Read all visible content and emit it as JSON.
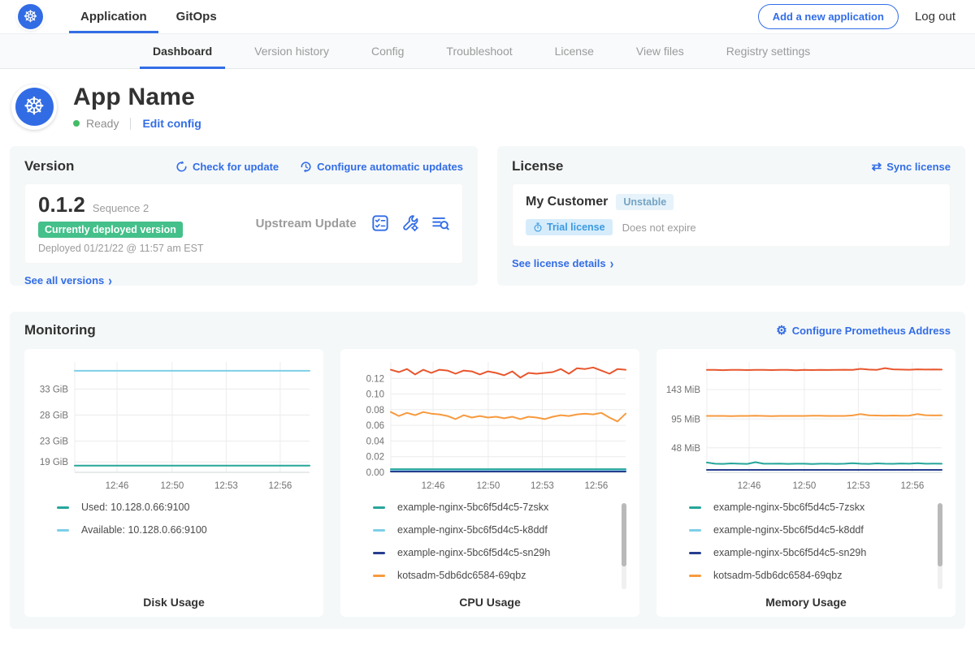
{
  "colors": {
    "accent_blue": "#326de6",
    "k8s_blue": "#326ce5",
    "green_badge": "#44c08a",
    "ready_green": "#44bb66",
    "panel_bg": "#f5f8f9",
    "teal": "#26a69a",
    "light_blue": "#7ecfe8",
    "navy": "#253e8f",
    "orange": "#f79a3e",
    "red_orange": "#e8562d"
  },
  "icons": {
    "logo_glyph": "☸",
    "chevron": "›",
    "gear": "⚙",
    "sync": "⇄"
  },
  "top_nav": {
    "tabs": [
      {
        "label": "Application"
      },
      {
        "label": "GitOps"
      }
    ],
    "active": "Application",
    "add_button": "Add a new application",
    "logout": "Log out"
  },
  "sub_nav": {
    "tabs": [
      "Dashboard",
      "Version history",
      "Config",
      "Troubleshoot",
      "License",
      "View files",
      "Registry settings"
    ],
    "active": "Dashboard"
  },
  "app_header": {
    "name": "App Name",
    "status": "Ready",
    "edit_config": "Edit config"
  },
  "version_card": {
    "title": "Version",
    "check_for_update": "Check for update",
    "configure_updates": "Configure automatic updates",
    "version": "0.1.2",
    "sequence": "Sequence 2",
    "deployed_badge": "Currently deployed version",
    "deployed_at": "Deployed 01/21/22 @ 11:57 am EST",
    "source": "Upstream Update",
    "action_icons": [
      "preflight-checks",
      "config-wrench",
      "deploy-logs"
    ],
    "see_all": "See all versions"
  },
  "license_card": {
    "title": "License",
    "sync": "Sync license",
    "customer": "My Customer",
    "channel": "Unstable",
    "trial_badge": "Trial license",
    "expiry": "Does not expire",
    "details": "See license details"
  },
  "monitoring": {
    "title": "Monitoring",
    "configure_link": "Configure Prometheus Address",
    "charts": [
      {
        "type": "line",
        "title": "Disk Usage",
        "ylim": [
          17,
          38.2
        ],
        "yticks": [
          {
            "v": 19,
            "label": "19 GiB"
          },
          {
            "v": 23,
            "label": "23 GiB"
          },
          {
            "v": 28,
            "label": "28 GiB"
          },
          {
            "v": 33,
            "label": "33 GiB"
          }
        ],
        "xticks": [
          {
            "f": 0.18,
            "label": "12:46"
          },
          {
            "f": 0.415,
            "label": "12:50"
          },
          {
            "f": 0.645,
            "label": "12:53"
          },
          {
            "f": 0.875,
            "label": "12:56"
          }
        ],
        "series": [
          {
            "name": "Used: 10.128.0.66:9100",
            "color": "#26a69a",
            "values": [
              18.3,
              18.3
            ]
          },
          {
            "name": "Available: 10.128.0.66:9100",
            "color": "#7ecfe8",
            "values": [
              36.5,
              36.5
            ]
          }
        ],
        "legend": [
          {
            "label": "Used: 10.128.0.66:9100",
            "color": "#26a69a"
          },
          {
            "label": "Available: 10.128.0.66:9100",
            "color": "#7ecfe8"
          }
        ],
        "legend_scrollbar": false
      },
      {
        "type": "line",
        "title": "CPU Usage",
        "ylim": [
          0,
          0.141
        ],
        "yticks": [
          {
            "v": 0.0,
            "label": "0.00"
          },
          {
            "v": 0.02,
            "label": "0.02"
          },
          {
            "v": 0.04,
            "label": "0.04"
          },
          {
            "v": 0.06,
            "label": "0.06"
          },
          {
            "v": 0.08,
            "label": "0.08"
          },
          {
            "v": 0.1,
            "label": "0.10"
          },
          {
            "v": 0.12,
            "label": "0.12"
          }
        ],
        "xticks": [
          {
            "f": 0.18,
            "label": "12:46"
          },
          {
            "f": 0.415,
            "label": "12:50"
          },
          {
            "f": 0.645,
            "label": "12:53"
          },
          {
            "f": 0.875,
            "label": "12:56"
          }
        ],
        "series": [
          {
            "name": "",
            "color": "#e8562d",
            "values": [
              0.131,
              0.128,
              0.132,
              0.125,
              0.131,
              0.127,
              0.131,
              0.13,
              0.126,
              0.13,
              0.129,
              0.125,
              0.129,
              0.127,
              0.124,
              0.129,
              0.121,
              0.127,
              0.126,
              0.127,
              0.128,
              0.132,
              0.126,
              0.133,
              0.132,
              0.134,
              0.13,
              0.126,
              0.132,
              0.131
            ]
          },
          {
            "name": "kotsadm-5db6dc6584-69qbz",
            "color": "#f79a3e",
            "values": [
              0.077,
              0.072,
              0.076,
              0.073,
              0.077,
              0.075,
              0.074,
              0.072,
              0.068,
              0.073,
              0.07,
              0.072,
              0.07,
              0.071,
              0.069,
              0.071,
              0.068,
              0.071,
              0.07,
              0.068,
              0.071,
              0.073,
              0.072,
              0.074,
              0.075,
              0.074,
              0.076,
              0.07,
              0.065,
              0.075
            ]
          },
          {
            "name": "example-nginx-5bc6f5d4c5-7zskx",
            "color": "#26a69a",
            "values": [
              0.004,
              0.004
            ]
          },
          {
            "name": "example-nginx-5bc6f5d4c5-k8ddf",
            "color": "#7ecfe8",
            "values": [
              0.002,
              0.002
            ]
          },
          {
            "name": "example-nginx-5bc6f5d4c5-sn29h",
            "color": "#253e8f",
            "values": [
              0.001,
              0.001
            ]
          }
        ],
        "legend": [
          {
            "label": "example-nginx-5bc6f5d4c5-7zskx",
            "color": "#26a69a"
          },
          {
            "label": "example-nginx-5bc6f5d4c5-k8ddf",
            "color": "#7ecfe8"
          },
          {
            "label": "example-nginx-5bc6f5d4c5-sn29h",
            "color": "#253e8f"
          },
          {
            "label": "kotsadm-5db6dc6584-69qbz",
            "color": "#f79a3e"
          }
        ],
        "legend_scrollbar": true
      },
      {
        "type": "line",
        "title": "Memory Usage",
        "ylim": [
          8,
          188
        ],
        "yticks": [
          {
            "v": 48,
            "label": "48 MiB"
          },
          {
            "v": 95,
            "label": "95 MiB"
          },
          {
            "v": 143,
            "label": "143 MiB"
          }
        ],
        "xticks": [
          {
            "f": 0.18,
            "label": "12:46"
          },
          {
            "f": 0.415,
            "label": "12:50"
          },
          {
            "f": 0.645,
            "label": "12:53"
          },
          {
            "f": 0.875,
            "label": "12:56"
          }
        ],
        "series": [
          {
            "name": "",
            "color": "#e8562d",
            "values": [
              175,
              175,
              174.6,
              175,
              175.2,
              174.8,
              175,
              175,
              174.7,
              175,
              175,
              174.5,
              175,
              174.8,
              175,
              174.9,
              175,
              175.3,
              175,
              176.8,
              175.6,
              175.2,
              178,
              176,
              175.6,
              175.3,
              176,
              175.5,
              175.8,
              175.6
            ]
          },
          {
            "name": "kotsadm-5db6dc6584-69qbz",
            "color": "#f79a3e",
            "values": [
              100,
              100,
              100,
              99.6,
              100,
              100,
              100.3,
              100,
              99.7,
              100,
              100,
              100,
              100,
              100.4,
              100.2,
              100,
              100,
              100,
              100.8,
              103,
              101,
              100.6,
              100.4,
              100.6,
              100.3,
              100.5,
              103,
              101.2,
              100.8,
              100.9
            ]
          },
          {
            "name": "example-nginx-5bc6f5d4c5-7zskx",
            "color": "#26a69a",
            "values": [
              24,
              22,
              21.8,
              22.5,
              22,
              21.8,
              24.5,
              22,
              22,
              22.3,
              21.8,
              22,
              22,
              21.6,
              22,
              22,
              21.7,
              22,
              22.8,
              22,
              21.8,
              22.5,
              22,
              21.9,
              22.4,
              22,
              23,
              22,
              22.2,
              22
            ]
          },
          {
            "name": "example-nginx-5bc6f5d4c5-sn29h",
            "color": "#253e8f",
            "values": [
              12,
              12
            ]
          }
        ],
        "legend": [
          {
            "label": "example-nginx-5bc6f5d4c5-7zskx",
            "color": "#26a69a"
          },
          {
            "label": "example-nginx-5bc6f5d4c5-k8ddf",
            "color": "#7ecfe8"
          },
          {
            "label": "example-nginx-5bc6f5d4c5-sn29h",
            "color": "#253e8f"
          },
          {
            "label": "kotsadm-5db6dc6584-69qbz",
            "color": "#f79a3e"
          }
        ],
        "legend_scrollbar": true
      }
    ]
  }
}
